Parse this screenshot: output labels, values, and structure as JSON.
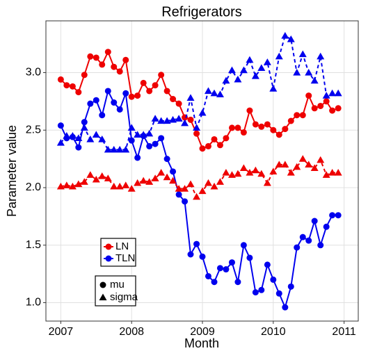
{
  "chart_data": {
    "type": "line",
    "title": "Refrigerators",
    "x_label": "Month",
    "y_label": "Parameter value",
    "x": [
      2007,
      2007.083,
      2007.167,
      2007.25,
      2007.333,
      2007.417,
      2007.5,
      2007.583,
      2007.667,
      2007.75,
      2007.833,
      2007.917,
      2008,
      2008.083,
      2008.167,
      2008.25,
      2008.333,
      2008.417,
      2008.5,
      2008.583,
      2008.667,
      2008.75,
      2008.833,
      2008.917,
      2009,
      2009.083,
      2009.167,
      2009.25,
      2009.333,
      2009.417,
      2009.5,
      2009.583,
      2009.667,
      2009.75,
      2009.833,
      2009.917,
      2010,
      2010.083,
      2010.167,
      2010.25,
      2010.333,
      2010.417,
      2010.5,
      2010.583,
      2010.667,
      2010.75,
      2010.833,
      2010.917
    ],
    "models": [
      {
        "name": "LN",
        "color": "#ee0000"
      },
      {
        "name": "TLN",
        "color": "#0000ee"
      }
    ],
    "parameters": [
      {
        "name": "mu",
        "marker": "circle",
        "dash": "solid"
      },
      {
        "name": "sigma",
        "marker": "triangle",
        "dash": "dashed"
      }
    ],
    "series": [
      {
        "model": "LN",
        "parameter": "mu",
        "values": [
          2.94,
          2.89,
          2.88,
          2.83,
          2.98,
          3.14,
          3.13,
          3.07,
          3.18,
          3.05,
          3.01,
          3.11,
          2.79,
          2.8,
          2.91,
          2.84,
          2.89,
          2.98,
          2.84,
          2.77,
          2.73,
          2.61,
          2.59,
          2.47,
          2.34,
          2.36,
          2.42,
          2.37,
          2.43,
          2.52,
          2.52,
          2.48,
          2.67,
          2.55,
          2.53,
          2.55,
          2.5,
          2.46,
          2.51,
          2.58,
          2.63,
          2.63,
          2.8,
          2.69,
          2.71,
          2.75,
          2.67,
          2.69
        ]
      },
      {
        "model": "TLN",
        "parameter": "mu",
        "values": [
          2.54,
          2.43,
          2.44,
          2.35,
          2.57,
          2.73,
          2.76,
          2.63,
          2.84,
          2.74,
          2.68,
          2.82,
          2.41,
          2.26,
          2.45,
          2.36,
          2.38,
          2.43,
          2.25,
          2.14,
          1.94,
          1.88,
          1.42,
          1.51,
          1.4,
          1.23,
          1.18,
          1.3,
          1.29,
          1.35,
          1.18,
          1.5,
          1.39,
          1.09,
          1.11,
          1.33,
          1.2,
          1.08,
          0.96,
          1.14,
          1.48,
          1.57,
          1.54,
          1.71,
          1.5,
          1.66,
          1.76,
          1.76
        ]
      },
      {
        "model": "LN",
        "parameter": "sigma",
        "values": [
          2.01,
          2.02,
          2.01,
          2.03,
          2.05,
          2.11,
          2.07,
          2.1,
          2.08,
          2.01,
          2.01,
          2.02,
          1.99,
          2.04,
          2.06,
          2.05,
          2.08,
          2.13,
          2.09,
          2.06,
          1.99,
          1.99,
          2.03,
          1.92,
          1.97,
          2.04,
          2.01,
          2.05,
          2.13,
          2.11,
          2.12,
          2.17,
          2.13,
          2.15,
          2.12,
          2.04,
          2.14,
          2.2,
          2.2,
          2.13,
          2.18,
          2.25,
          2.2,
          2.17,
          2.24,
          2.11,
          2.13,
          2.13
        ]
      },
      {
        "model": "TLN",
        "parameter": "sigma",
        "values": [
          2.39,
          2.45,
          2.45,
          2.43,
          2.52,
          2.42,
          2.46,
          2.42,
          2.33,
          2.33,
          2.33,
          2.33,
          2.52,
          2.46,
          2.46,
          2.47,
          2.6,
          2.58,
          2.58,
          2.59,
          2.6,
          2.56,
          2.78,
          2.52,
          2.65,
          2.84,
          2.82,
          2.81,
          2.93,
          3.02,
          2.94,
          3.02,
          3.11,
          2.97,
          3.04,
          3.09,
          2.86,
          3.14,
          3.32,
          3.29,
          3.0,
          3.16,
          3.0,
          2.93,
          3.14,
          2.8,
          2.82,
          2.82
        ]
      }
    ],
    "xlim": [
      2006.79,
      2011.2
    ],
    "xticks": [
      2007,
      2008,
      2009,
      2010,
      2011
    ],
    "ylim": [
      0.84,
      3.45
    ],
    "yticks": [
      {
        "value": 1,
        "label": "1.0"
      },
      1.5,
      {
        "value": 2,
        "label": "2.0"
      },
      2.5,
      {
        "value": 3,
        "label": "3.0"
      }
    ],
    "grid": true
  }
}
